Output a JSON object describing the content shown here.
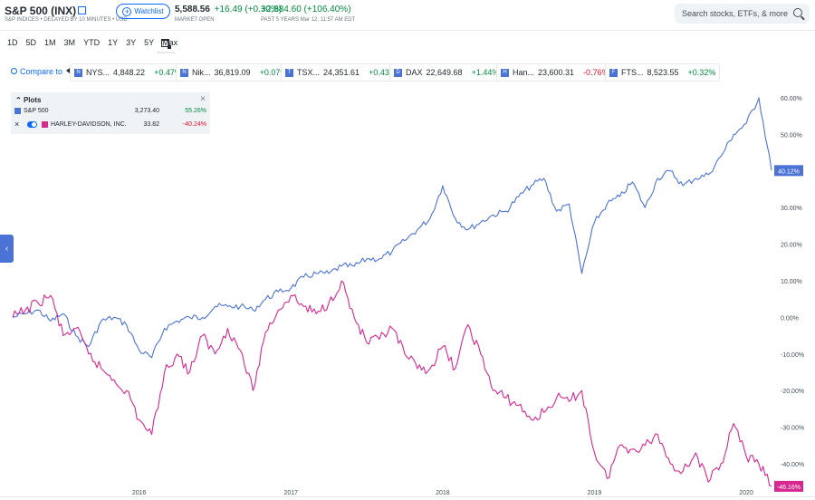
{
  "header": {
    "title": "S&P 500 (INX)",
    "subtitle": "S&P INDICES • DELAYED BY 10 MINUTES • USD",
    "watchlist_label": "Watchlist",
    "price": "5,588.56",
    "change": "+16.49 (+0.30%)",
    "market_status": "MARKET OPEN",
    "period_change": "+2,884.60 (+106.40%)",
    "period_note": "PAST 5 YEARS Mar 12, 11:57 AM EDT",
    "search_placeholder": "Search stocks, ETFs, & more"
  },
  "ranges": [
    "1D",
    "5D",
    "1M",
    "3M",
    "YTD",
    "1Y",
    "3Y",
    "5Y",
    "Max"
  ],
  "compare": {
    "label": "Compare to",
    "chips": [
      {
        "badge": "N",
        "name": "NYS...",
        "value": "4,848.22",
        "change": "+0.47%",
        "dir": "pos"
      },
      {
        "badge": "N",
        "name": "Nik...",
        "value": "36,819.09",
        "change": "+0.07%",
        "dir": "pos"
      },
      {
        "badge": "T",
        "name": "TSX...",
        "value": "24,351.61",
        "change": "+0.43%",
        "dir": "pos"
      },
      {
        "badge": "D",
        "name": "DAX",
        "value": "22,649.68",
        "change": "+1.44%",
        "dir": "pos"
      },
      {
        "badge": "H",
        "name": "Han...",
        "value": "23,600.31",
        "change": "-0.76%",
        "dir": "neg"
      },
      {
        "badge": "F",
        "name": "FTS...",
        "value": "8,523.55",
        "change": "+0.32%",
        "dir": "pos"
      }
    ]
  },
  "plots": {
    "title": "Plots",
    "rows": [
      {
        "name": "S&P 500",
        "value": "3,273.40",
        "pct": "55.26%",
        "color": "#4b73d6",
        "dir": "pos"
      },
      {
        "name": "HARLEY-DAVIDSON, INC.",
        "value": "33.82",
        "pct": "-40.24%",
        "color": "#d6288e",
        "dir": "neg"
      }
    ]
  },
  "chart_data": {
    "type": "line",
    "x_range": [
      "2015-03",
      "2020-03"
    ],
    "ylim": [
      -50,
      60
    ],
    "y_ticks": [
      "60.00%",
      "50.00%",
      "40.00%",
      "30.00%",
      "20.00%",
      "10.00%",
      "0.00%",
      "-10.00%",
      "-20.00%",
      "-30.00%",
      "-40.00%"
    ],
    "x_ticks": [
      "2016",
      "2017",
      "2018",
      "2019",
      "2020"
    ],
    "grid": false,
    "series": [
      {
        "name": "S&P 500",
        "color": "#4b73d6",
        "end_label": "40.12%",
        "points": [
          [
            "2015-03",
            0
          ],
          [
            "2015-04",
            1
          ],
          [
            "2015-05",
            2
          ],
          [
            "2015-06",
            -1
          ],
          [
            "2015-07",
            1
          ],
          [
            "2015-08",
            -5
          ],
          [
            "2015-09",
            -8
          ],
          [
            "2015-10",
            -1
          ],
          [
            "2015-11",
            0
          ],
          [
            "2015-12",
            -2
          ],
          [
            "2016-01",
            -9
          ],
          [
            "2016-02",
            -11
          ],
          [
            "2016-03",
            -3
          ],
          [
            "2016-04",
            -1
          ],
          [
            "2016-05",
            0
          ],
          [
            "2016-06",
            0
          ],
          [
            "2016-07",
            3
          ],
          [
            "2016-08",
            3
          ],
          [
            "2016-09",
            3
          ],
          [
            "2016-10",
            2
          ],
          [
            "2016-11",
            5
          ],
          [
            "2016-12",
            7
          ],
          [
            "2017-01",
            8
          ],
          [
            "2017-02",
            11
          ],
          [
            "2017-03",
            12
          ],
          [
            "2017-04",
            12
          ],
          [
            "2017-05",
            14
          ],
          [
            "2017-06",
            14
          ],
          [
            "2017-07",
            16
          ],
          [
            "2017-08",
            16
          ],
          [
            "2017-09",
            18
          ],
          [
            "2017-10",
            21
          ],
          [
            "2017-11",
            24
          ],
          [
            "2017-12",
            27
          ],
          [
            "2018-01",
            36
          ],
          [
            "2018-02",
            27
          ],
          [
            "2018-03",
            24
          ],
          [
            "2018-04",
            26
          ],
          [
            "2018-05",
            28
          ],
          [
            "2018-06",
            29
          ],
          [
            "2018-07",
            33
          ],
          [
            "2018-08",
            36
          ],
          [
            "2018-09",
            38
          ],
          [
            "2018-10",
            29
          ],
          [
            "2018-11",
            31
          ],
          [
            "2018-12",
            12
          ],
          [
            "2019-01",
            26
          ],
          [
            "2019-02",
            31
          ],
          [
            "2019-03",
            33
          ],
          [
            "2019-04",
            37
          ],
          [
            "2019-05",
            30
          ],
          [
            "2019-06",
            38
          ],
          [
            "2019-07",
            40
          ],
          [
            "2019-08",
            36
          ],
          [
            "2019-09",
            38
          ],
          [
            "2019-10",
            39
          ],
          [
            "2019-11",
            44
          ],
          [
            "2019-12",
            50
          ],
          [
            "2020-01",
            53
          ],
          [
            "2020-02",
            60
          ],
          [
            "2020-03",
            40.12
          ]
        ]
      },
      {
        "name": "HARLEY-DAVIDSON, INC.",
        "color": "#d6288e",
        "end_label": "-46.16%",
        "points": [
          [
            "2015-03",
            0
          ],
          [
            "2015-04",
            2
          ],
          [
            "2015-05",
            4
          ],
          [
            "2015-06",
            6
          ],
          [
            "2015-07",
            -5
          ],
          [
            "2015-08",
            -3
          ],
          [
            "2015-09",
            -10
          ],
          [
            "2015-10",
            -14
          ],
          [
            "2015-11",
            -17
          ],
          [
            "2015-12",
            -20
          ],
          [
            "2016-01",
            -28
          ],
          [
            "2016-02",
            -32
          ],
          [
            "2016-03",
            -15
          ],
          [
            "2016-04",
            -10
          ],
          [
            "2016-05",
            -15
          ],
          [
            "2016-06",
            -5
          ],
          [
            "2016-07",
            -10
          ],
          [
            "2016-08",
            -3
          ],
          [
            "2016-09",
            -9
          ],
          [
            "2016-10",
            -20
          ],
          [
            "2016-11",
            -4
          ],
          [
            "2016-12",
            2
          ],
          [
            "2017-01",
            6
          ],
          [
            "2017-02",
            3
          ],
          [
            "2017-03",
            1
          ],
          [
            "2017-04",
            4
          ],
          [
            "2017-05",
            10
          ],
          [
            "2017-06",
            0
          ],
          [
            "2017-07",
            -7
          ],
          [
            "2017-08",
            -6
          ],
          [
            "2017-09",
            -3
          ],
          [
            "2017-10",
            -10
          ],
          [
            "2017-11",
            -14
          ],
          [
            "2017-12",
            -14
          ],
          [
            "2018-01",
            -8
          ],
          [
            "2018-02",
            -14
          ],
          [
            "2018-03",
            -2
          ],
          [
            "2018-04",
            -10
          ],
          [
            "2018-05",
            -20
          ],
          [
            "2018-06",
            -22
          ],
          [
            "2018-07",
            -24
          ],
          [
            "2018-08",
            -28
          ],
          [
            "2018-09",
            -26
          ],
          [
            "2018-10",
            -22
          ],
          [
            "2018-11",
            -23
          ],
          [
            "2018-12",
            -20
          ],
          [
            "2019-01",
            -37
          ],
          [
            "2019-02",
            -44
          ],
          [
            "2019-03",
            -35
          ],
          [
            "2019-04",
            -36
          ],
          [
            "2019-05",
            -35
          ],
          [
            "2019-06",
            -32
          ],
          [
            "2019-07",
            -40
          ],
          [
            "2019-08",
            -42
          ],
          [
            "2019-09",
            -37
          ],
          [
            "2019-10",
            -45
          ],
          [
            "2019-11",
            -40
          ],
          [
            "2019-12",
            -29
          ],
          [
            "2020-01",
            -38
          ],
          [
            "2020-02",
            -40
          ],
          [
            "2020-03",
            -46.16
          ]
        ]
      }
    ]
  }
}
